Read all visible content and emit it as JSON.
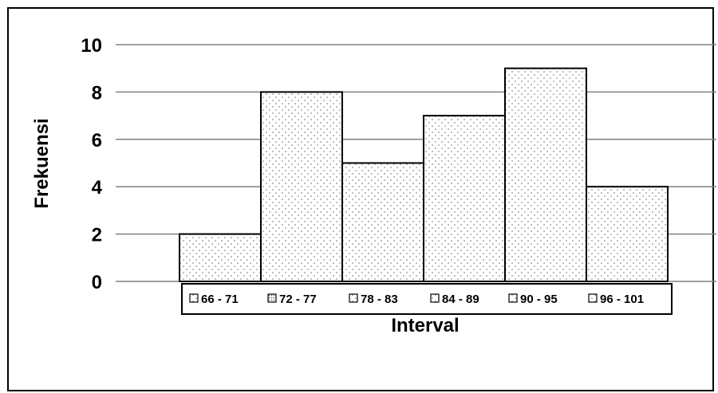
{
  "chart_data": {
    "type": "bar",
    "categories": [
      "66 - 71",
      "72 - 77",
      "78 - 83",
      "84 - 89",
      "90 - 95",
      "96 - 101"
    ],
    "values": [
      2,
      8,
      5,
      7,
      9,
      4
    ],
    "title": "",
    "xlabel": "Interval",
    "ylabel": "Frekuensi",
    "ylim": [
      0,
      10
    ],
    "yticks": [
      0,
      2,
      4,
      6,
      8,
      10
    ],
    "grid": "horizontal",
    "legend": "bottom",
    "bar_fill": "#ffffff",
    "bar_pattern": "dotted",
    "bar_stroke": "#000000",
    "grid_color": "#808080"
  }
}
